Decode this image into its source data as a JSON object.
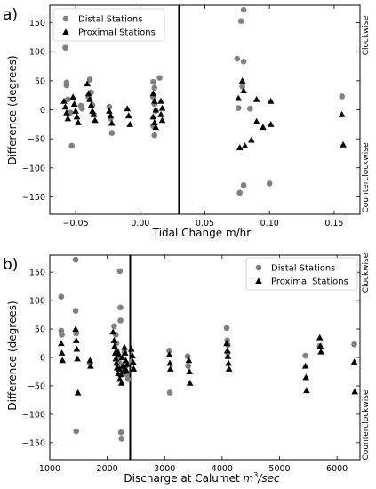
{
  "chart_data": [
    {
      "type": "scatter",
      "panel_label": "a)",
      "xlabel": "Tidal Change m/hr",
      "ylabel": "Difference (degrees)",
      "xlim": [
        -0.07,
        0.17
      ],
      "ylim": [
        -180,
        180
      ],
      "xticks": [
        -0.05,
        0.0,
        0.05,
        0.1,
        0.15
      ],
      "xtick_labels": [
        "−0.05",
        "0.00",
        "0.05",
        "0.10",
        "0.15"
      ],
      "yticks": [
        -150,
        -100,
        -50,
        0,
        50,
        100,
        150
      ],
      "ytick_labels": [
        "−150",
        "−100",
        "−50",
        "0",
        "50",
        "100",
        "150"
      ],
      "right_labels": {
        "top": "Clockwise",
        "bottom": "Counterclockwise"
      },
      "vline": 0.03,
      "grid": false,
      "legend": {
        "placement": "top-left",
        "entries": [
          "Distal Stations",
          "Proximal Stations"
        ]
      },
      "series": [
        {
          "name": "Distal Stations",
          "marker": "circle",
          "color": "#808080",
          "points": [
            [
              -0.058,
              107
            ],
            [
              -0.057,
              47
            ],
            [
              -0.057,
              42
            ],
            [
              -0.056,
              18
            ],
            [
              -0.054,
              -5
            ],
            [
              -0.053,
              -62
            ],
            [
              -0.046,
              7
            ],
            [
              -0.045,
              2
            ],
            [
              -0.04,
              22
            ],
            [
              -0.039,
              52
            ],
            [
              -0.038,
              30
            ],
            [
              -0.037,
              8
            ],
            [
              -0.036,
              -8
            ],
            [
              -0.024,
              5
            ],
            [
              -0.023,
              -15
            ],
            [
              -0.022,
              -40
            ],
            [
              0.01,
              48
            ],
            [
              0.011,
              38
            ],
            [
              0.01,
              22
            ],
            [
              0.011,
              10
            ],
            [
              0.012,
              -2
            ],
            [
              0.01,
              -28
            ],
            [
              0.011,
              -44
            ],
            [
              0.015,
              55
            ],
            [
              0.075,
              88
            ],
            [
              0.076,
              3
            ],
            [
              0.077,
              -143
            ],
            [
              0.078,
              153
            ],
            [
              0.079,
              40
            ],
            [
              0.08,
              172
            ],
            [
              0.08,
              83
            ],
            [
              0.08,
              -130
            ],
            [
              0.085,
              2
            ],
            [
              0.1,
              -127
            ],
            [
              0.156,
              23
            ]
          ]
        },
        {
          "name": "Proximal Stations",
          "marker": "triangle",
          "color": "#000000",
          "points": [
            [
              -0.059,
              15
            ],
            [
              -0.058,
              5
            ],
            [
              -0.057,
              -5
            ],
            [
              -0.056,
              -15
            ],
            [
              -0.052,
              22
            ],
            [
              -0.051,
              10
            ],
            [
              -0.05,
              -2
            ],
            [
              -0.049,
              -12
            ],
            [
              -0.048,
              -22
            ],
            [
              -0.041,
              45
            ],
            [
              -0.04,
              28
            ],
            [
              -0.039,
              18
            ],
            [
              -0.038,
              8
            ],
            [
              -0.037,
              -2
            ],
            [
              -0.036,
              -8
            ],
            [
              -0.035,
              -18
            ],
            [
              -0.024,
              -2
            ],
            [
              -0.023,
              -10
            ],
            [
              -0.022,
              -23
            ],
            [
              -0.01,
              2
            ],
            [
              -0.009,
              -10
            ],
            [
              -0.008,
              -25
            ],
            [
              0.01,
              28
            ],
            [
              0.011,
              15
            ],
            [
              0.012,
              0
            ],
            [
              0.01,
              -12
            ],
            [
              0.011,
              -22
            ],
            [
              0.012,
              -30
            ],
            [
              0.016,
              15
            ],
            [
              0.017,
              3
            ],
            [
              0.016,
              -8
            ],
            [
              0.017,
              -18
            ],
            [
              0.076,
              20
            ],
            [
              0.077,
              -65
            ],
            [
              0.079,
              50
            ],
            [
              0.08,
              33
            ],
            [
              0.081,
              -62
            ],
            [
              0.086,
              -52
            ],
            [
              0.09,
              18
            ],
            [
              0.09,
              -20
            ],
            [
              0.095,
              -30
            ],
            [
              0.101,
              15
            ],
            [
              0.101,
              -25
            ],
            [
              0.156,
              -8
            ],
            [
              0.157,
              -60
            ]
          ]
        }
      ]
    },
    {
      "type": "scatter",
      "panel_label": "b)",
      "xlabel_main": "Discharge at Calumet ",
      "xlabel_var": "m",
      "xlabel_sup": "3",
      "xlabel_unit": "/sec",
      "ylabel": "Difference (degrees)",
      "xlim": [
        1000,
        6400
      ],
      "ylim": [
        -180,
        180
      ],
      "xticks": [
        1000,
        2000,
        3000,
        4000,
        5000,
        6000
      ],
      "xtick_labels": [
        "1000",
        "2000",
        "3000",
        "4000",
        "5000",
        "6000"
      ],
      "yticks": [
        -150,
        -100,
        -50,
        0,
        50,
        100,
        150
      ],
      "ytick_labels": [
        "−150",
        "−100",
        "−50",
        "0",
        "50",
        "100",
        "150"
      ],
      "right_labels": {
        "top": "Clockwise",
        "bottom": "Counterclockwise"
      },
      "vline": 2400,
      "grid": false,
      "legend": {
        "placement": "top-right",
        "entries": [
          "Distal Stations",
          "Proximal Stations"
        ]
      },
      "series": [
        {
          "name": "Distal Stations",
          "marker": "circle",
          "color": "#808080",
          "points": [
            [
              1200,
              107
            ],
            [
              1200,
              47
            ],
            [
              1210,
              40
            ],
            [
              1450,
              172
            ],
            [
              1450,
              82
            ],
            [
              1460,
              42
            ],
            [
              1460,
              -130
            ],
            [
              1700,
              -10
            ],
            [
              2120,
              55
            ],
            [
              2150,
              40
            ],
            [
              2160,
              25
            ],
            [
              2170,
              10
            ],
            [
              2180,
              0
            ],
            [
              2200,
              -5
            ],
            [
              2210,
              -10
            ],
            [
              2220,
              152
            ],
            [
              2230,
              88
            ],
            [
              2230,
              65
            ],
            [
              2240,
              -132
            ],
            [
              2250,
              -143
            ],
            [
              2260,
              -22
            ],
            [
              2300,
              10
            ],
            [
              2320,
              -15
            ],
            [
              2340,
              -30
            ],
            [
              2360,
              -38
            ],
            [
              2420,
              -8
            ],
            [
              3080,
              12
            ],
            [
              3090,
              -62
            ],
            [
              3400,
              2
            ],
            [
              3410,
              -15
            ],
            [
              4080,
              52
            ],
            [
              4090,
              30
            ],
            [
              4100,
              22
            ],
            [
              4100,
              8
            ],
            [
              5450,
              3
            ],
            [
              5700,
              20
            ],
            [
              6300,
              23
            ]
          ]
        },
        {
          "name": "Proximal Stations",
          "marker": "triangle",
          "color": "#000000",
          "points": [
            [
              1200,
              25
            ],
            [
              1210,
              8
            ],
            [
              1220,
              -5
            ],
            [
              1450,
              50
            ],
            [
              1460,
              30
            ],
            [
              1470,
              15
            ],
            [
              1480,
              -2
            ],
            [
              1490,
              -62
            ],
            [
              1700,
              -5
            ],
            [
              1710,
              -15
            ],
            [
              2100,
              45
            ],
            [
              2120,
              30
            ],
            [
              2130,
              20
            ],
            [
              2140,
              8
            ],
            [
              2150,
              -2
            ],
            [
              2160,
              -10
            ],
            [
              2170,
              -18
            ],
            [
              2180,
              10
            ],
            [
              2190,
              -28
            ],
            [
              2200,
              5
            ],
            [
              2210,
              -20
            ],
            [
              2220,
              -38
            ],
            [
              2240,
              -30
            ],
            [
              2250,
              -45
            ],
            [
              2260,
              0
            ],
            [
              2270,
              -15
            ],
            [
              2280,
              -25
            ],
            [
              2300,
              18
            ],
            [
              2310,
              8
            ],
            [
              2320,
              -5
            ],
            [
              2330,
              -22
            ],
            [
              2350,
              -12
            ],
            [
              2420,
              15
            ],
            [
              2440,
              3
            ],
            [
              2450,
              -8
            ],
            [
              2460,
              -20
            ],
            [
              3080,
              5
            ],
            [
              3090,
              -10
            ],
            [
              3100,
              -20
            ],
            [
              3420,
              -5
            ],
            [
              3430,
              -25
            ],
            [
              3440,
              -45
            ],
            [
              4080,
              25
            ],
            [
              4090,
              12
            ],
            [
              4100,
              2
            ],
            [
              4110,
              -10
            ],
            [
              4120,
              -20
            ],
            [
              5450,
              -15
            ],
            [
              5460,
              -35
            ],
            [
              5470,
              -58
            ],
            [
              5700,
              35
            ],
            [
              5710,
              20
            ],
            [
              5720,
              10
            ],
            [
              6300,
              -8
            ],
            [
              6310,
              -60
            ]
          ]
        }
      ]
    }
  ]
}
